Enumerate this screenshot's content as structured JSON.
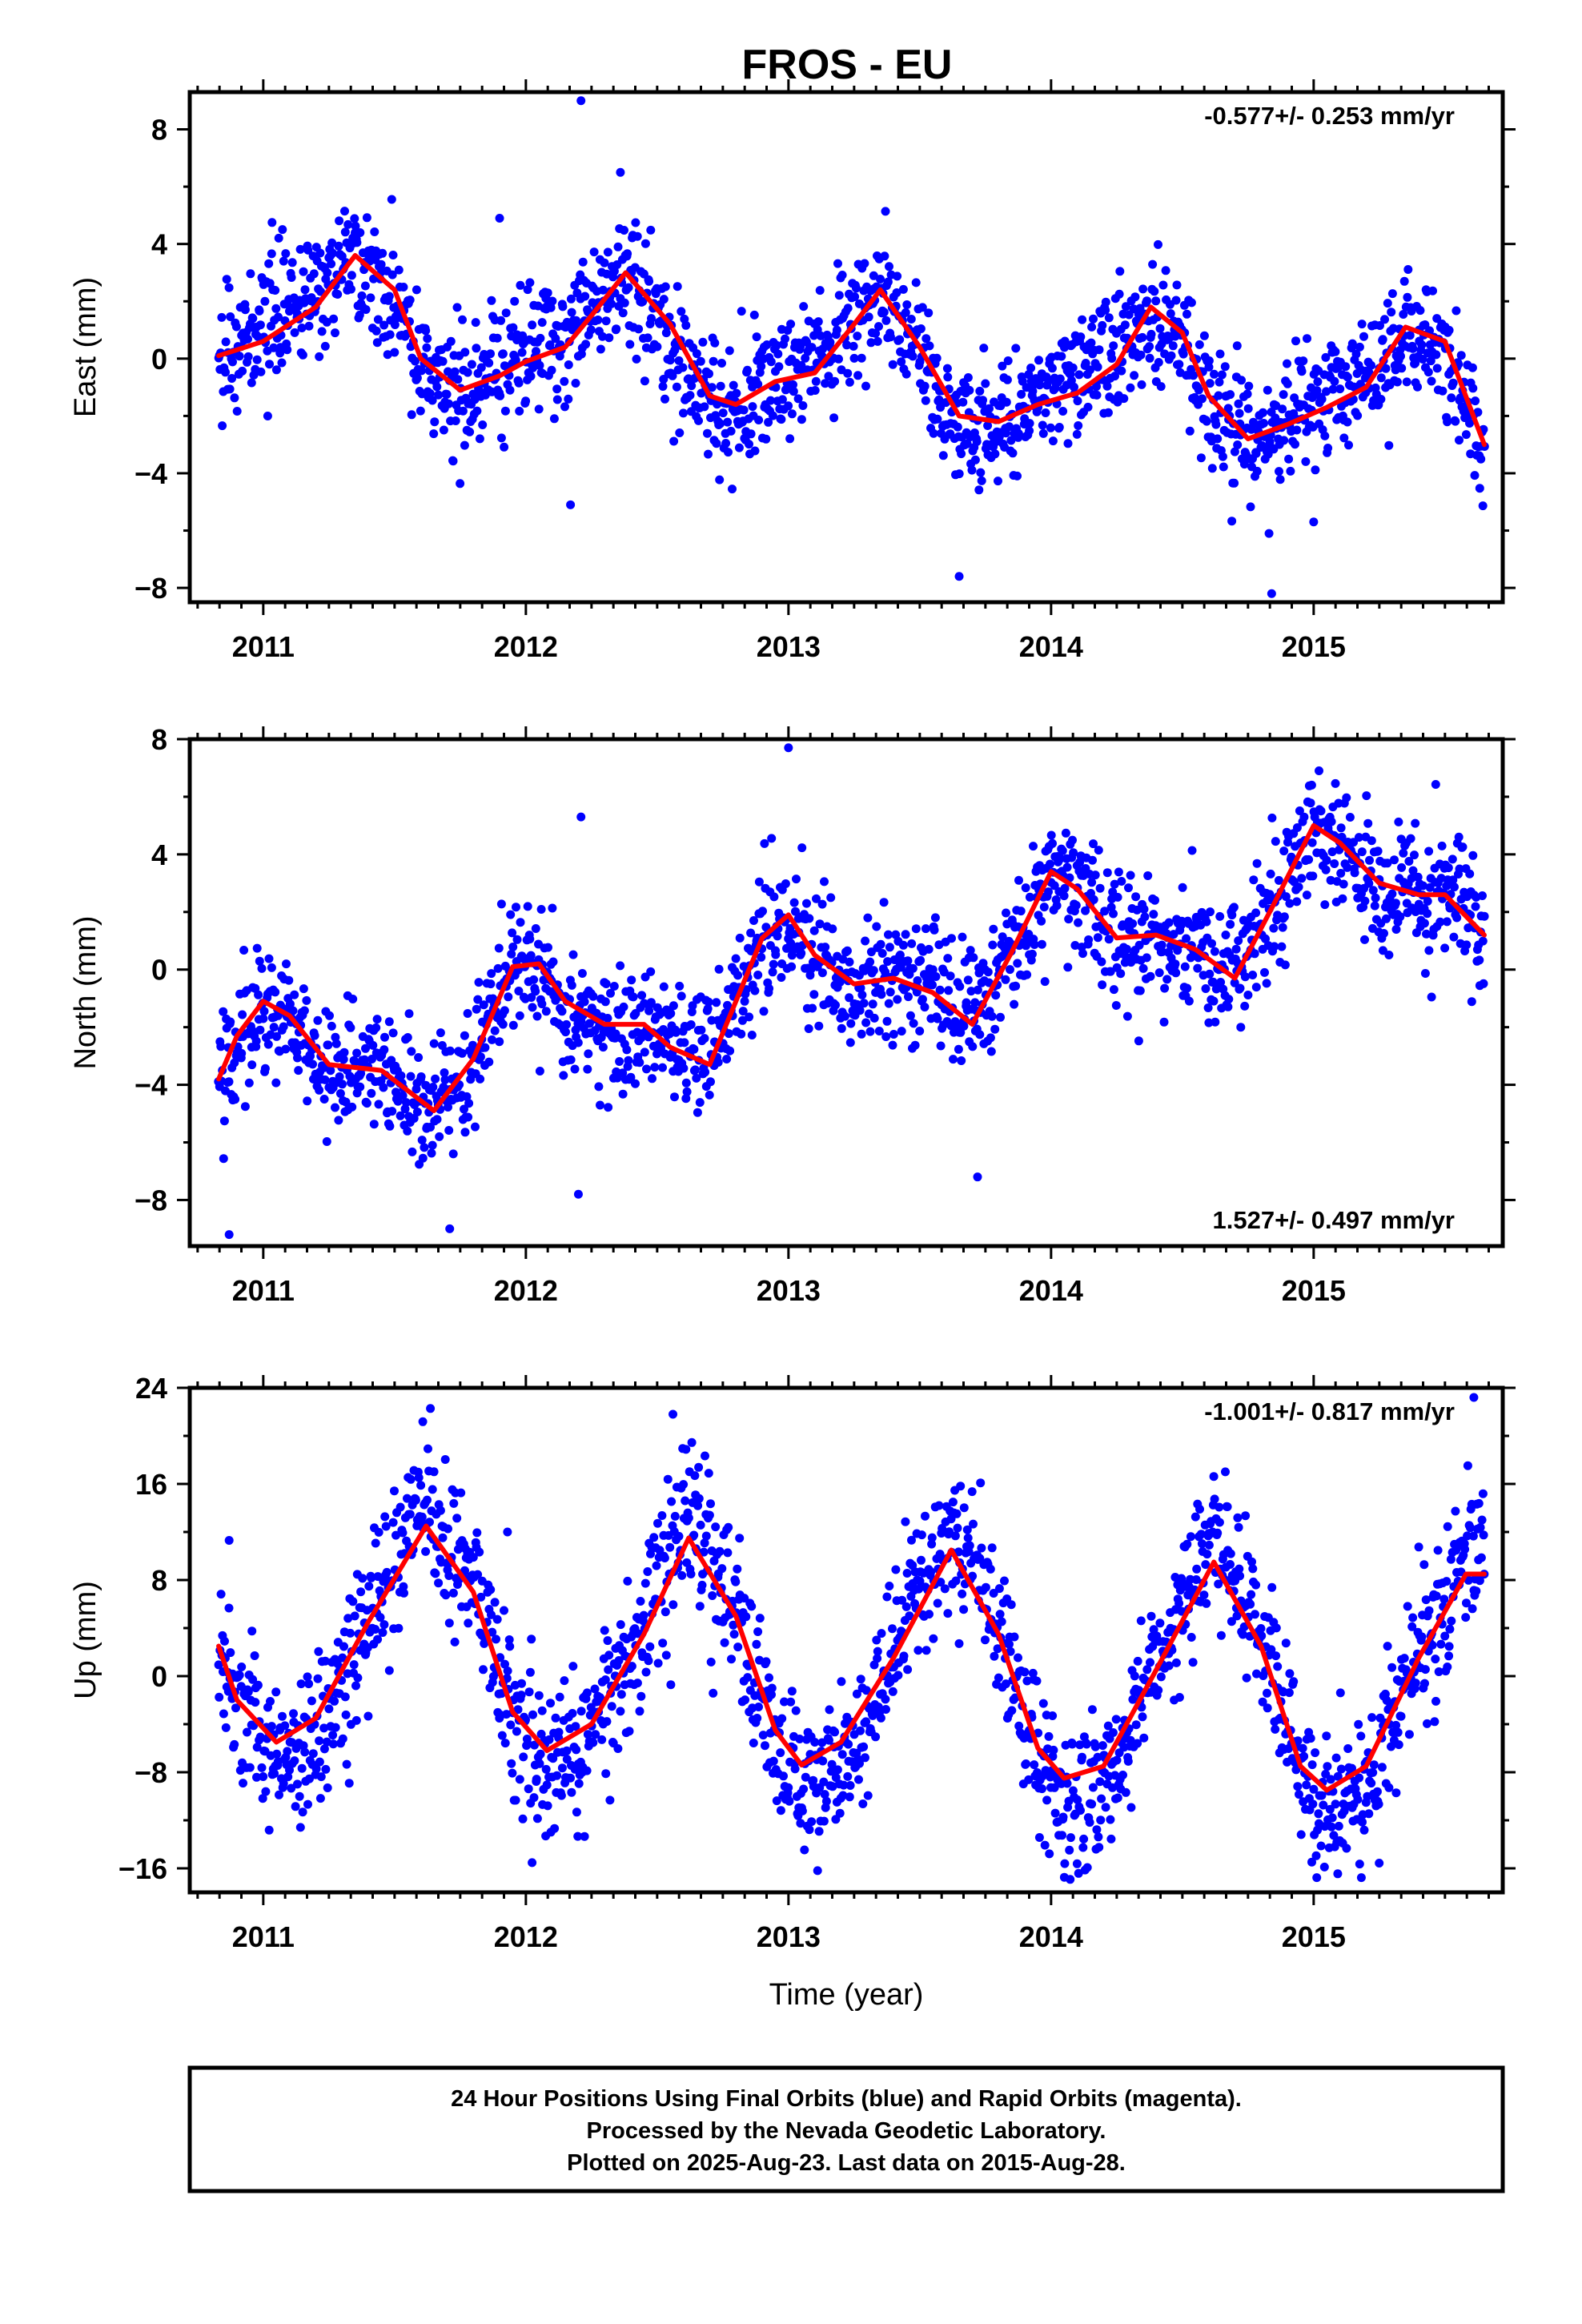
{
  "title": "FROS - EU",
  "footer": {
    "line1": "24 Hour Positions Using Final Orbits (blue) and Rapid Orbits (magenta).",
    "line2": "Processed by the Nevada Geodetic Laboratory.",
    "line3": "Plotted on 2025-Aug-23. Last data on 2015-Aug-28."
  },
  "colors": {
    "observations": "#0000ff",
    "model": "#ff0000"
  },
  "chart_data": [
    {
      "type": "scatter",
      "component": "east",
      "ylabel": "East (mm)",
      "xlabel": "",
      "xlim": [
        2010.72,
        2015.72
      ],
      "ylim": [
        -8.5,
        9.3
      ],
      "yticks": [
        -8,
        -4,
        0,
        4,
        8
      ],
      "xticks": [
        2011,
        2012,
        2013,
        2014,
        2015
      ],
      "rate": "-0.577+/- 0.253 mm/yr",
      "rate_position": "top-right",
      "model": {
        "x": [
          2010.83,
          2011.0,
          2011.2,
          2011.35,
          2011.5,
          2011.6,
          2011.75,
          2011.9,
          2012.0,
          2012.15,
          2012.25,
          2012.38,
          2012.55,
          2012.7,
          2012.8,
          2012.95,
          2013.1,
          2013.25,
          2013.35,
          2013.5,
          2013.65,
          2013.8,
          2013.95,
          2014.1,
          2014.25,
          2014.38,
          2014.5,
          2014.6,
          2014.75,
          2014.9,
          2015.05,
          2015.2,
          2015.35,
          2015.5,
          2015.65
        ],
        "y": [
          0.1,
          0.6,
          1.8,
          3.6,
          2.4,
          0.0,
          -1.1,
          -0.6,
          -0.1,
          0.4,
          1.5,
          3.0,
          1.2,
          -1.3,
          -1.6,
          -0.8,
          -0.5,
          1.2,
          2.4,
          0.4,
          -2.0,
          -2.2,
          -1.6,
          -1.2,
          -0.2,
          1.8,
          0.9,
          -1.3,
          -2.8,
          -2.3,
          -1.7,
          -1.0,
          1.1,
          0.6,
          -3.0
        ]
      },
      "outliers": [
        [
          2012.21,
          9.0
        ],
        [
          2012.17,
          -5.1
        ],
        [
          2013.65,
          -7.6
        ],
        [
          2014.84,
          -8.2
        ],
        [
          2014.83,
          -6.1
        ],
        [
          2015.0,
          -5.7
        ],
        [
          2011.9,
          4.9
        ],
        [
          2012.36,
          6.5
        ]
      ],
      "seasonal": {
        "amplitude": 2.4,
        "noise": 1.1,
        "phase": 0.15
      }
    },
    {
      "type": "scatter",
      "component": "north",
      "ylabel": "North (mm)",
      "xlabel": "",
      "xlim": [
        2010.72,
        2015.72
      ],
      "ylim": [
        -9.6,
        8.0
      ],
      "yticks": [
        -8,
        -4,
        0,
        4,
        8
      ],
      "xticks": [
        2011,
        2012,
        2013,
        2014,
        2015
      ],
      "rate": "1.527+/- 0.497 mm/yr",
      "rate_position": "bottom-right",
      "model": {
        "x": [
          2010.83,
          2010.9,
          2011.0,
          2011.1,
          2011.25,
          2011.45,
          2011.65,
          2011.8,
          2011.95,
          2012.05,
          2012.15,
          2012.3,
          2012.45,
          2012.55,
          2012.7,
          2012.8,
          2012.9,
          2013.0,
          2013.1,
          2013.25,
          2013.4,
          2013.55,
          2013.7,
          2013.85,
          2014.0,
          2014.1,
          2014.25,
          2014.4,
          2014.55,
          2014.7,
          2014.85,
          2015.0,
          2015.1,
          2015.25,
          2015.4,
          2015.5,
          2015.65
        ],
        "y": [
          -3.8,
          -2.3,
          -1.1,
          -1.6,
          -3.3,
          -3.5,
          -4.9,
          -3.1,
          0.1,
          0.2,
          -1.1,
          -1.9,
          -1.9,
          -2.7,
          -3.3,
          -1.1,
          1.1,
          1.9,
          0.5,
          -0.5,
          -0.3,
          -0.8,
          -1.9,
          0.6,
          3.4,
          2.8,
          1.1,
          1.2,
          0.7,
          -0.3,
          2.3,
          5.0,
          4.4,
          3.0,
          2.6,
          2.6,
          1.2
        ]
      },
      "outliers": [
        [
          2010.87,
          -9.2
        ],
        [
          2012.21,
          5.3
        ],
        [
          2012.2,
          -7.8
        ],
        [
          2013.72,
          -7.2
        ],
        [
          2011.71,
          -9.0
        ],
        [
          2013.0,
          7.7
        ]
      ],
      "seasonal": {
        "amplitude": 1.3,
        "noise": 1.1,
        "phase": 0.6
      }
    },
    {
      "type": "scatter",
      "component": "up",
      "ylabel": "Up (mm)",
      "xlabel": "Time (year)",
      "xlim": [
        2010.72,
        2015.72
      ],
      "ylim": [
        -18,
        24
      ],
      "yticks": [
        -16,
        -8,
        0,
        8,
        16,
        24
      ],
      "xticks": [
        2011,
        2012,
        2013,
        2014,
        2015
      ],
      "rate": "-1.001+/- 0.817 mm/yr",
      "rate_position": "top-right",
      "model": {
        "x": [
          2010.83,
          2010.9,
          2011.05,
          2011.2,
          2011.4,
          2011.62,
          2011.8,
          2011.95,
          2012.08,
          2012.25,
          2012.45,
          2012.62,
          2012.8,
          2012.95,
          2013.05,
          2013.2,
          2013.4,
          2013.62,
          2013.8,
          2013.95,
          2014.05,
          2014.2,
          2014.4,
          2014.62,
          2014.8,
          2014.95,
          2015.05,
          2015.2,
          2015.4,
          2015.58,
          2015.65
        ],
        "y": [
          2.5,
          -2.0,
          -5.5,
          -3.5,
          4.5,
          12.5,
          7.0,
          -3.0,
          -6.2,
          -4.0,
          3.5,
          11.5,
          5.0,
          -4.5,
          -7.4,
          -5.5,
          1.5,
          10.5,
          3.5,
          -6.0,
          -8.5,
          -7.5,
          0.5,
          9.5,
          2.5,
          -7.5,
          -9.5,
          -7.5,
          1.5,
          8.5,
          8.5
        ]
      },
      "outliers": [
        [
          2012.56,
          21.8
        ],
        [
          2015.61,
          23.2
        ],
        [
          2010.87,
          11.3
        ],
        [
          2011.93,
          12.0
        ]
      ],
      "seasonal": {
        "amplitude": 9.0,
        "noise": 3.2,
        "phase": 0.62
      }
    }
  ]
}
